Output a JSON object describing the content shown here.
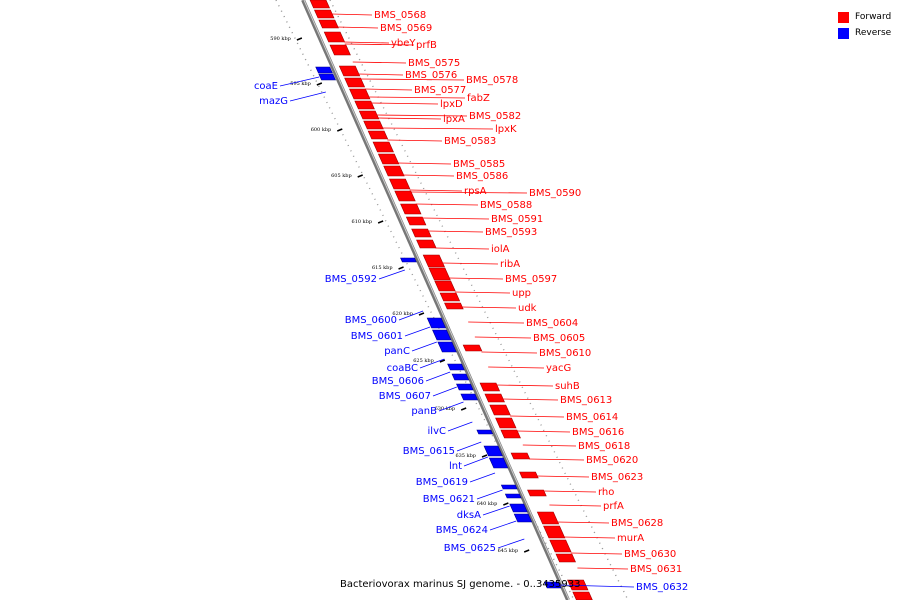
{
  "caption": "Bacteriovorax marinus SJ genome. - 0..3435933",
  "legend": {
    "forward_label": "Forward",
    "reverse_label": "Reverse",
    "forward_color": "#ff0000",
    "reverse_color": "#0000ff"
  },
  "axis": {
    "unit": "kbp",
    "ticks": [
      "590 kbp",
      "595 kbp",
      "600 kbp",
      "605 kbp",
      "610 kbp",
      "615 kbp",
      "620 kbp",
      "625 kbp",
      "630 kbp",
      "635 kbp",
      "640 kbp",
      "645 kbp"
    ]
  },
  "forward_genes": [
    "BMS_0568",
    "BMS_0569",
    "ybeY",
    "prfB",
    "BMS_0575",
    "BMS_0576",
    "BMS_0578",
    "BMS_0577",
    "fabZ",
    "lpxD",
    "BMS_0582",
    "lpxA",
    "lpxK",
    "BMS_0583",
    "BMS_0585",
    "BMS_0586",
    "rpsA",
    "BMS_0590",
    "BMS_0588",
    "BMS_0591",
    "BMS_0593",
    "iolA",
    "ribA",
    "BMS_0597",
    "upp",
    "udk",
    "BMS_0604",
    "BMS_0605",
    "BMS_0610",
    "yacG",
    "suhB",
    "BMS_0613",
    "BMS_0614",
    "BMS_0616",
    "BMS_0618",
    "BMS_0620",
    "BMS_0623",
    "rho",
    "prfA",
    "BMS_0628",
    "murA",
    "BMS_0630",
    "BMS_0631"
  ],
  "reverse_genes": [
    "coaE",
    "mazG",
    "BMS_0592",
    "BMS_0600",
    "BMS_0601",
    "panC",
    "coaBC",
    "BMS_0606",
    "BMS_0607",
    "panB",
    "ilvC",
    "BMS_0615",
    "lnt",
    "BMS_0619",
    "BMS_0621",
    "dksA",
    "BMS_0624",
    "BMS_0625",
    "BMS_0632"
  ]
}
